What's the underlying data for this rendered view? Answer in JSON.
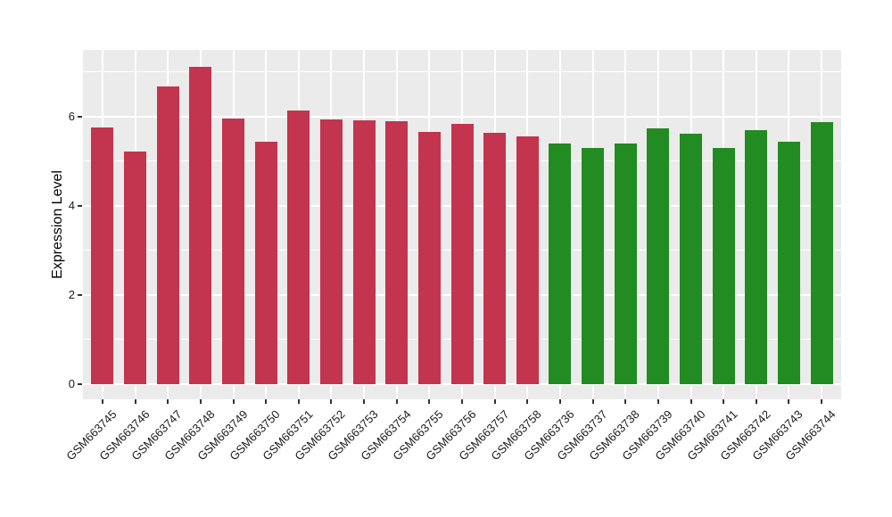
{
  "page": {
    "background": "#FFFFFF"
  },
  "chart_data": {
    "type": "bar",
    "title": "",
    "xlabel": "",
    "ylabel": "Expression Level",
    "legend": "none",
    "grid": true,
    "panel_background": "#EBEBEB",
    "gridline_color": "#FFFFFF",
    "tick_label_color": "#1A1A1A",
    "axis_title_color": "#000000",
    "ylim": [
      0,
      7.5
    ],
    "yticks": [
      0,
      2,
      4,
      6
    ],
    "ytick_labels": [
      "0",
      "2",
      "4",
      "6"
    ],
    "y_minor_gridlines": [
      1,
      3,
      5,
      7
    ],
    "categories": [
      "GSM663745",
      "GSM663746",
      "GSM663747",
      "GSM663748",
      "GSM663749",
      "GSM663750",
      "GSM663751",
      "GSM663752",
      "GSM663753",
      "GSM663754",
      "GSM663755",
      "GSM663756",
      "GSM663757",
      "GSM663758",
      "GSM663736",
      "GSM663737",
      "GSM663738",
      "GSM663739",
      "GSM663740",
      "GSM663741",
      "GSM663742",
      "GSM663743",
      "GSM663744"
    ],
    "values": [
      5.75,
      5.22,
      6.67,
      7.12,
      5.96,
      5.43,
      6.14,
      5.93,
      5.92,
      5.9,
      5.65,
      5.83,
      5.64,
      5.55,
      5.39,
      5.29,
      5.4,
      5.74,
      5.61,
      5.3,
      5.7,
      5.44,
      5.88
    ],
    "groups": [
      "red",
      "red",
      "red",
      "red",
      "red",
      "red",
      "red",
      "red",
      "red",
      "red",
      "red",
      "red",
      "red",
      "red",
      "green",
      "green",
      "green",
      "green",
      "green",
      "green",
      "green",
      "green",
      "green"
    ],
    "group_colors": {
      "red": "#C3344F",
      "green": "#228B22"
    }
  }
}
